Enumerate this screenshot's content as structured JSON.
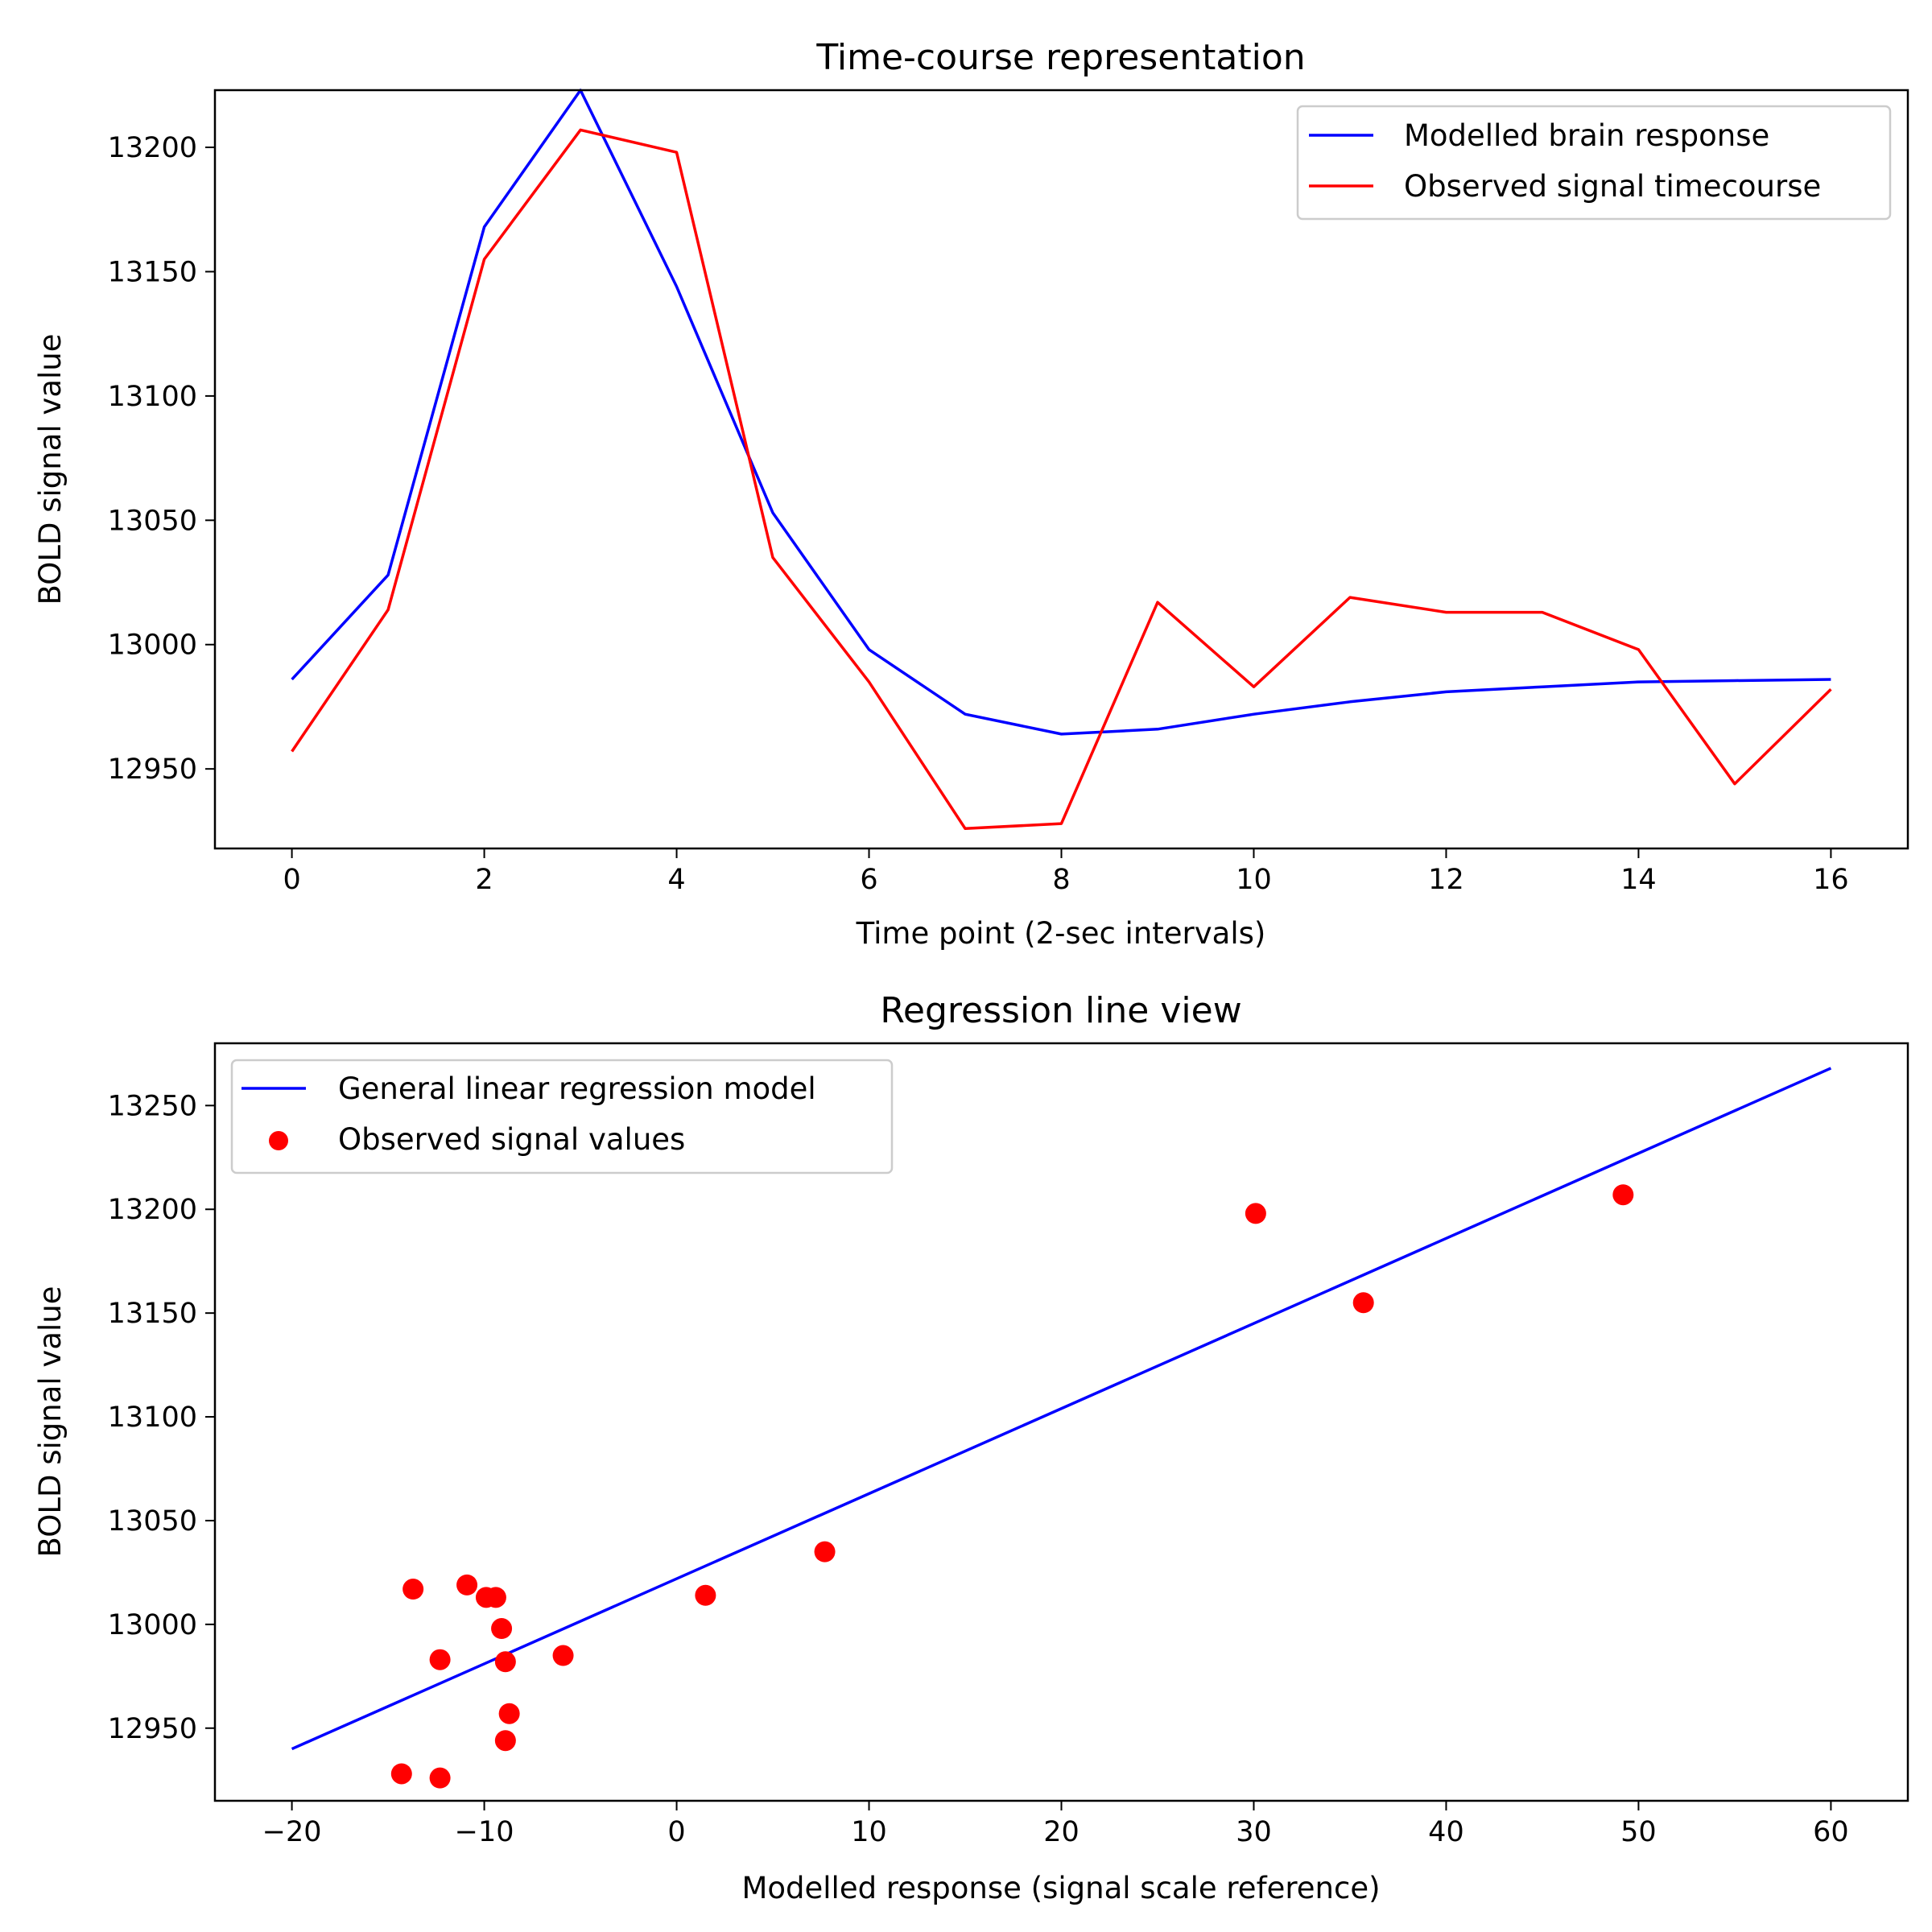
{
  "chart_data": [
    {
      "type": "line",
      "title": "Time-course representation",
      "xlabel": "Time point (2-sec intervals)",
      "ylabel": "BOLD signal value",
      "xlim": [
        -0.8,
        16.8
      ],
      "ylim": [
        12918,
        13223
      ],
      "xticks": [
        0,
        2,
        4,
        6,
        8,
        10,
        12,
        14,
        16
      ],
      "yticks": [
        12950,
        13000,
        13050,
        13100,
        13150,
        13200
      ],
      "legend_position": "upper-right",
      "grid": false,
      "series": [
        {
          "name": "Modelled brain response",
          "color": "#0000ff",
          "x": [
            0,
            1,
            2,
            3,
            4,
            5,
            6,
            7,
            8,
            9,
            10,
            11,
            12,
            13,
            14,
            15,
            16
          ],
          "values": [
            12986,
            13028,
            13168,
            13223,
            13144,
            13053,
            12998,
            12972,
            12964,
            12966,
            12972,
            12977,
            12981,
            12983,
            12985,
            12985.5,
            12986
          ]
        },
        {
          "name": "Observed signal timecourse",
          "color": "#ff0000",
          "x": [
            0,
            1,
            2,
            3,
            4,
            5,
            6,
            7,
            8,
            9,
            10,
            11,
            12,
            13,
            14,
            15,
            16
          ],
          "values": [
            12957,
            13014,
            13155,
            13207,
            13198,
            13035,
            12985,
            12926,
            12928,
            13017,
            12983,
            13019,
            13013,
            13013,
            12998,
            12944,
            12982
          ]
        }
      ]
    },
    {
      "type": "scatter",
      "title": "Regression line view",
      "xlabel": "Modelled response (signal scale reference)",
      "ylabel": "BOLD signal value",
      "xlim": [
        -24,
        64
      ],
      "ylim": [
        12915,
        13280
      ],
      "xticks": [
        -20,
        -10,
        0,
        10,
        20,
        30,
        40,
        50,
        60
      ],
      "xtick_labels": [
        "−20",
        "−10",
        "0",
        "10",
        "20",
        "30",
        "40",
        "50",
        "60"
      ],
      "yticks": [
        12950,
        13000,
        13050,
        13100,
        13150,
        13200,
        13250
      ],
      "legend_position": "upper-left",
      "grid": false,
      "line": {
        "name": "General linear regression model",
        "color": "#0000ff",
        "x": [
          -20,
          60
        ],
        "y": [
          12940,
          13268
        ]
      },
      "points": {
        "name": "Observed signal values",
        "color": "#ff0000",
        "x": [
          -8.7,
          1.5,
          35.7,
          49.2,
          30.1,
          7.7,
          -5.9,
          -14.3,
          -12.3,
          -13.7,
          -12.3,
          -10.9,
          -9.9,
          -9.4,
          -9.1,
          -8.9,
          -8.9
        ],
        "y": [
          12957,
          13014,
          13155,
          13207,
          13198,
          13035,
          12985,
          12928,
          12926,
          13017,
          12983,
          13019,
          13013,
          13013,
          12998,
          12982,
          12944
        ]
      }
    }
  ]
}
